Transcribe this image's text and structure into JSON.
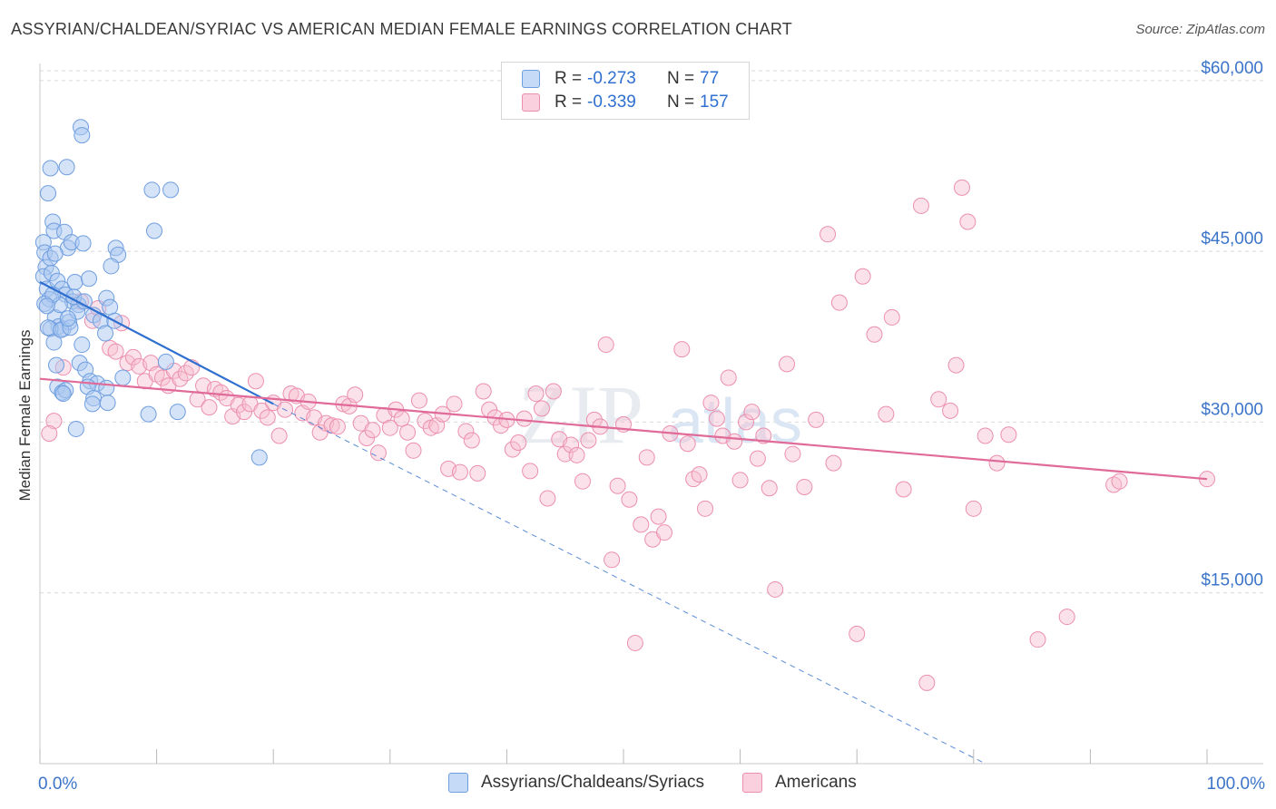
{
  "title": "ASSYRIAN/CHALDEAN/SYRIAC VS AMERICAN MEDIAN FEMALE EARNINGS CORRELATION CHART",
  "source": "Source: ZipAtlas.com",
  "colors": {
    "blue_fill": "#aac8f0",
    "blue_stroke": "#6f9ee0",
    "blue_line": "#2f6fd0",
    "pink_fill": "#f7bfd0",
    "pink_stroke": "#ec8fae",
    "pink_line": "#e06a98",
    "axis_label": "#3b74c9",
    "grid": "#d9d9d9"
  },
  "stats": {
    "series1": {
      "r_label": "R = ",
      "r_value": "-0.273",
      "n_label": "N = ",
      "n_value": "77"
    },
    "series2": {
      "r_label": "R = ",
      "r_value": "-0.339",
      "n_label": "N = ",
      "n_value": "157"
    }
  },
  "legend": {
    "series1": "Assyrians/Chaldeans/Syriacs",
    "series2": "Americans"
  },
  "watermark": {
    "zip": "ZIP",
    "atlas": "atlas"
  },
  "chart_data": {
    "type": "scatter",
    "title": "ASSYRIAN/CHALDEAN/SYRIAC VS AMERICAN MEDIAN FEMALE EARNINGS CORRELATION CHART",
    "xlabel": "",
    "ylabel": "Median Female Earnings",
    "xlim": [
      0,
      100
    ],
    "ylim": [
      0,
      61500
    ],
    "x_tick_labels": [
      "0.0%",
      "100.0%"
    ],
    "y_ticks": [
      15000,
      30000,
      45000,
      60000
    ],
    "y_tick_labels": [
      "$15,000",
      "$30,000",
      "$45,000",
      "$60,000"
    ],
    "grid": true,
    "legend_position": "bottom",
    "series": [
      {
        "name": "Assyrians/Chaldeans/Syriacs",
        "trend": {
          "x": [
            0,
            20
          ],
          "y": [
            42300,
            31600
          ],
          "dashed_extension_to": [
            81,
            0
          ]
        },
        "points": [
          [
            0.3,
            45800
          ],
          [
            0.4,
            44900
          ],
          [
            0.5,
            43600
          ],
          [
            0.3,
            42800
          ],
          [
            0.6,
            41700
          ],
          [
            0.8,
            40800
          ],
          [
            0.4,
            40400
          ],
          [
            0.9,
            44400
          ],
          [
            1.0,
            43100
          ],
          [
            1.1,
            47600
          ],
          [
            1.2,
            46800
          ],
          [
            0.9,
            52300
          ],
          [
            0.7,
            50100
          ],
          [
            2.3,
            52400
          ],
          [
            3.5,
            55900
          ],
          [
            3.6,
            55200
          ],
          [
            2.1,
            46700
          ],
          [
            2.4,
            45300
          ],
          [
            2.7,
            45800
          ],
          [
            3.7,
            45700
          ],
          [
            1.5,
            42400
          ],
          [
            1.9,
            41700
          ],
          [
            2.2,
            41200
          ],
          [
            2.8,
            40600
          ],
          [
            3.3,
            40300
          ],
          [
            3.0,
            42300
          ],
          [
            4.2,
            42600
          ],
          [
            4.6,
            39400
          ],
          [
            5.7,
            40900
          ],
          [
            6.0,
            40100
          ],
          [
            6.5,
            45300
          ],
          [
            6.7,
            44700
          ],
          [
            6.1,
            43700
          ],
          [
            9.6,
            50400
          ],
          [
            11.2,
            50400
          ],
          [
            9.8,
            46800
          ],
          [
            1.3,
            39200
          ],
          [
            1.6,
            38400
          ],
          [
            2.0,
            38200
          ],
          [
            2.5,
            38800
          ],
          [
            3.2,
            39700
          ],
          [
            5.2,
            38900
          ],
          [
            5.6,
            37800
          ],
          [
            0.9,
            38200
          ],
          [
            1.2,
            37000
          ],
          [
            0.7,
            38300
          ],
          [
            1.8,
            38100
          ],
          [
            2.6,
            38300
          ],
          [
            1.4,
            35000
          ],
          [
            3.4,
            35200
          ],
          [
            3.9,
            34600
          ],
          [
            4.3,
            33600
          ],
          [
            4.9,
            33400
          ],
          [
            7.1,
            33900
          ],
          [
            10.8,
            35300
          ],
          [
            1.5,
            33100
          ],
          [
            1.9,
            32600
          ],
          [
            2.2,
            32800
          ],
          [
            4.1,
            33100
          ],
          [
            4.6,
            32100
          ],
          [
            5.7,
            33000
          ],
          [
            2.0,
            32500
          ],
          [
            4.5,
            31600
          ],
          [
            5.8,
            31700
          ],
          [
            3.1,
            29400
          ],
          [
            9.3,
            30700
          ],
          [
            11.8,
            30900
          ],
          [
            18.8,
            26900
          ],
          [
            1.7,
            40300
          ],
          [
            2.9,
            41000
          ],
          [
            3.8,
            40600
          ],
          [
            1.1,
            41200
          ],
          [
            0.6,
            40200
          ],
          [
            2.4,
            39100
          ],
          [
            6.4,
            38900
          ],
          [
            1.3,
            44800
          ],
          [
            3.6,
            36800
          ]
        ]
      },
      {
        "name": "Americans",
        "trend": {
          "x": [
            0,
            100
          ],
          "y": [
            33800,
            25000
          ]
        },
        "points": [
          [
            1.2,
            30100
          ],
          [
            0.8,
            29000
          ],
          [
            2.0,
            34800
          ],
          [
            3.5,
            40600
          ],
          [
            4.5,
            38900
          ],
          [
            5.0,
            40000
          ],
          [
            6.0,
            36500
          ],
          [
            6.5,
            36200
          ],
          [
            7.0,
            38700
          ],
          [
            7.5,
            35200
          ],
          [
            8.0,
            35700
          ],
          [
            8.5,
            34900
          ],
          [
            9.0,
            33600
          ],
          [
            9.5,
            35200
          ],
          [
            10.0,
            34200
          ],
          [
            10.5,
            33900
          ],
          [
            11.0,
            33200
          ],
          [
            11.5,
            34500
          ],
          [
            12.0,
            33800
          ],
          [
            12.5,
            34300
          ],
          [
            13.0,
            34800
          ],
          [
            13.5,
            32000
          ],
          [
            14.0,
            33200
          ],
          [
            14.5,
            31300
          ],
          [
            15.0,
            32900
          ],
          [
            15.5,
            32600
          ],
          [
            16.0,
            32100
          ],
          [
            16.5,
            30500
          ],
          [
            17.0,
            31500
          ],
          [
            17.5,
            30900
          ],
          [
            18.0,
            31600
          ],
          [
            18.5,
            33600
          ],
          [
            19.0,
            31000
          ],
          [
            19.5,
            30400
          ],
          [
            20.0,
            31700
          ],
          [
            20.5,
            28800
          ],
          [
            21.0,
            31100
          ],
          [
            21.5,
            32500
          ],
          [
            22.0,
            32300
          ],
          [
            22.5,
            30800
          ],
          [
            23.0,
            31800
          ],
          [
            23.5,
            30400
          ],
          [
            24.0,
            29100
          ],
          [
            24.5,
            29900
          ],
          [
            25.0,
            29700
          ],
          [
            25.5,
            29600
          ],
          [
            26.0,
            31600
          ],
          [
            26.5,
            31400
          ],
          [
            27.0,
            32400
          ],
          [
            27.5,
            29900
          ],
          [
            28.0,
            28600
          ],
          [
            28.5,
            29300
          ],
          [
            29.0,
            27300
          ],
          [
            29.5,
            30600
          ],
          [
            30.0,
            29500
          ],
          [
            30.5,
            31100
          ],
          [
            31.0,
            30300
          ],
          [
            31.5,
            29100
          ],
          [
            32.0,
            27500
          ],
          [
            32.5,
            31900
          ],
          [
            33.0,
            30100
          ],
          [
            33.5,
            29500
          ],
          [
            34.0,
            29700
          ],
          [
            34.5,
            30700
          ],
          [
            35.0,
            25900
          ],
          [
            35.5,
            31600
          ],
          [
            36.0,
            25600
          ],
          [
            36.5,
            29200
          ],
          [
            37.0,
            28400
          ],
          [
            37.5,
            25500
          ],
          [
            38.0,
            32700
          ],
          [
            38.5,
            31100
          ],
          [
            39.0,
            30400
          ],
          [
            39.5,
            29700
          ],
          [
            40.0,
            30200
          ],
          [
            40.5,
            27600
          ],
          [
            41.0,
            28200
          ],
          [
            41.5,
            30300
          ],
          [
            42.0,
            25700
          ],
          [
            42.5,
            32500
          ],
          [
            43.0,
            31200
          ],
          [
            43.5,
            23300
          ],
          [
            44.0,
            32700
          ],
          [
            44.5,
            28500
          ],
          [
            45.0,
            27200
          ],
          [
            45.5,
            28000
          ],
          [
            46.0,
            27100
          ],
          [
            46.5,
            24800
          ],
          [
            47.0,
            28400
          ],
          [
            47.5,
            30200
          ],
          [
            48.0,
            29600
          ],
          [
            48.5,
            36800
          ],
          [
            49.0,
            17900
          ],
          [
            49.5,
            24400
          ],
          [
            50.0,
            29800
          ],
          [
            50.5,
            23200
          ],
          [
            51.0,
            10600
          ],
          [
            51.5,
            21000
          ],
          [
            52.0,
            26900
          ],
          [
            52.5,
            19700
          ],
          [
            53.0,
            21700
          ],
          [
            53.5,
            20300
          ],
          [
            54.0,
            29000
          ],
          [
            55.0,
            36400
          ],
          [
            55.5,
            28100
          ],
          [
            56.0,
            25000
          ],
          [
            56.5,
            25400
          ],
          [
            57.0,
            22400
          ],
          [
            57.5,
            31700
          ],
          [
            58.0,
            30300
          ],
          [
            58.5,
            28800
          ],
          [
            59.0,
            33900
          ],
          [
            59.5,
            28300
          ],
          [
            60.0,
            24900
          ],
          [
            60.5,
            30000
          ],
          [
            61.0,
            30900
          ],
          [
            61.5,
            26800
          ],
          [
            62.0,
            28800
          ],
          [
            62.5,
            24200
          ],
          [
            63.0,
            15300
          ],
          [
            64.0,
            35100
          ],
          [
            64.5,
            27200
          ],
          [
            65.5,
            24300
          ],
          [
            66.5,
            30200
          ],
          [
            67.5,
            46500
          ],
          [
            68.0,
            26400
          ],
          [
            68.5,
            40500
          ],
          [
            70.0,
            11400
          ],
          [
            70.5,
            42800
          ],
          [
            71.5,
            37700
          ],
          [
            72.5,
            30700
          ],
          [
            73.0,
            39200
          ],
          [
            74.0,
            24100
          ],
          [
            75.5,
            49000
          ],
          [
            76.0,
            7100
          ],
          [
            77.0,
            32000
          ],
          [
            78.0,
            31000
          ],
          [
            78.5,
            35000
          ],
          [
            79.0,
            50600
          ],
          [
            79.5,
            47600
          ],
          [
            80.0,
            22400
          ],
          [
            81.0,
            28800
          ],
          [
            82.0,
            26400
          ],
          [
            83.0,
            28900
          ],
          [
            85.5,
            10900
          ],
          [
            88.0,
            12900
          ],
          [
            92.0,
            24500
          ],
          [
            92.5,
            24800
          ],
          [
            100.0,
            25000
          ]
        ]
      }
    ]
  }
}
